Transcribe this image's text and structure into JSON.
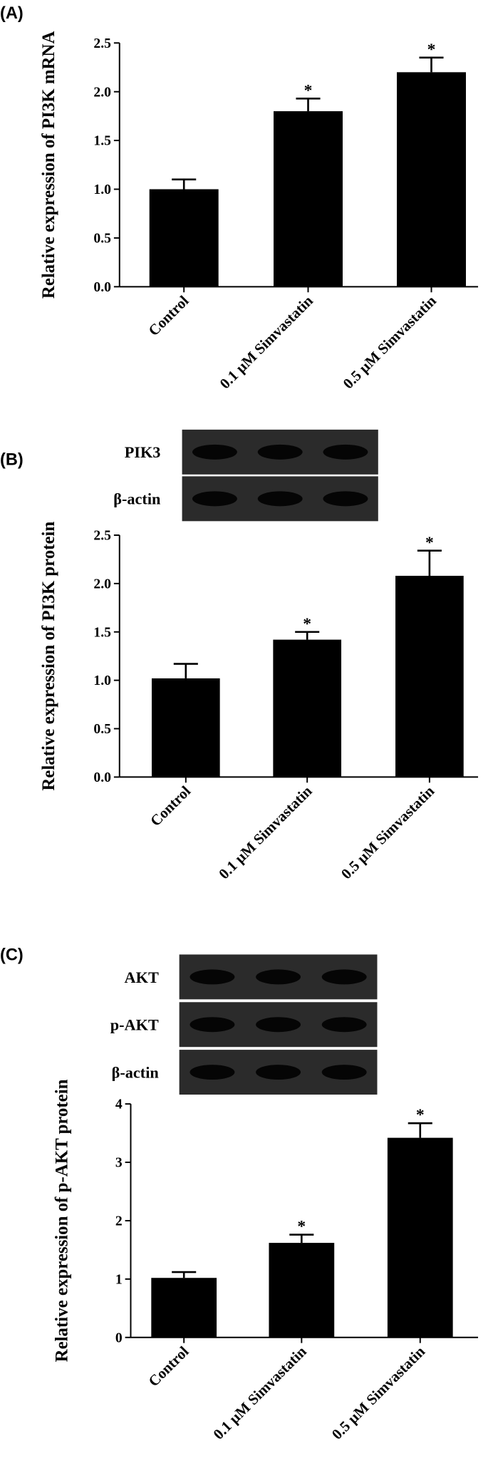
{
  "chart_data": [
    {
      "type": "bar",
      "panel": "(A)",
      "blot_labels": [],
      "ylabel": "Relative expression of PI3K mRNA",
      "categories": [
        "Control",
        "0.1 µM Simvastatin",
        "0.5 µM Simvastatin"
      ],
      "values": [
        1.0,
        1.8,
        2.2
      ],
      "errors": [
        0.1,
        0.13,
        0.15
      ],
      "significance": [
        null,
        "*",
        "*"
      ],
      "color": "#000000",
      "ylim": [
        0,
        2.5
      ],
      "yticks": [
        {
          "value": 0,
          "label": "0.0"
        },
        0.5,
        {
          "value": 1,
          "label": "1.0"
        },
        1.5,
        {
          "value": 2,
          "label": "2.0"
        },
        2.5
      ]
    },
    {
      "type": "bar",
      "panel": "(B)",
      "blot_labels": [
        "PIK3",
        "β-actin"
      ],
      "ylabel": "Relative expression of PI3K protein",
      "categories": [
        "Control",
        "0.1 µM Simvastatin",
        "0.5 µM Simvastatin"
      ],
      "values": [
        1.02,
        1.42,
        2.08
      ],
      "errors": [
        0.15,
        0.08,
        0.26
      ],
      "significance": [
        null,
        "*",
        "*"
      ],
      "color": "#000000",
      "ylim": [
        0,
        2.5
      ],
      "yticks": [
        {
          "value": 0,
          "label": "0.0"
        },
        0.5,
        {
          "value": 1,
          "label": "1.0"
        },
        1.5,
        {
          "value": 2,
          "label": "2.0"
        },
        2.5
      ]
    },
    {
      "type": "bar",
      "panel": "(C)",
      "blot_labels": [
        "AKT",
        "p-AKT",
        "β-actin"
      ],
      "ylabel": "Relative expression of p-AKT protein",
      "categories": [
        "Control",
        "0.1 µM Simvastatin",
        "0.5 µM Simvastatin"
      ],
      "values": [
        1.02,
        1.62,
        3.42
      ],
      "errors": [
        0.1,
        0.14,
        0.25
      ],
      "significance": [
        null,
        "*",
        "*"
      ],
      "color": "#000000",
      "ylim": [
        0,
        4
      ],
      "yticks": [
        0,
        1,
        2,
        3,
        4
      ]
    }
  ]
}
